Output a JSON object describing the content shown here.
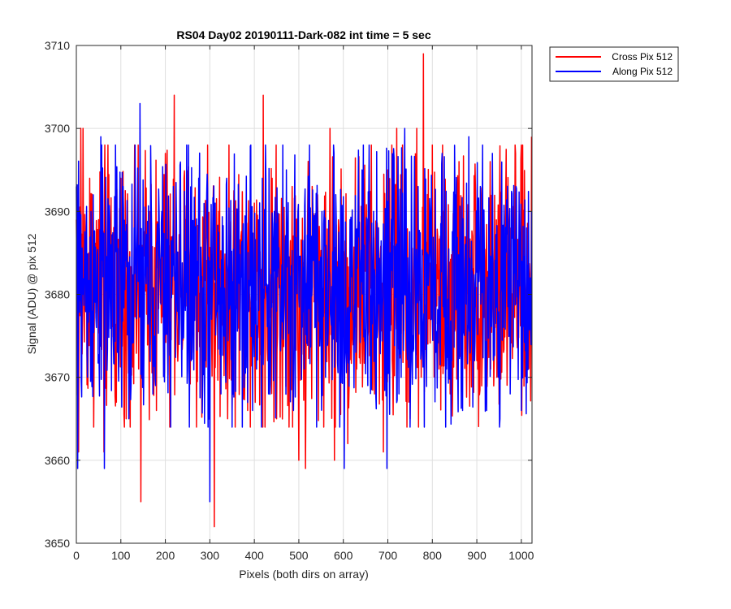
{
  "chart_data": {
    "type": "line",
    "title": "RS04 Day02 20190111-Dark-082 int time = 5 sec",
    "xlabel": "Pixels (both dirs on array)",
    "ylabel": "Signal (ADU) @ pix 512",
    "xlim": [
      0,
      1024
    ],
    "ylim": [
      3650,
      3710
    ],
    "x_ticks": [
      0,
      100,
      200,
      300,
      400,
      500,
      600,
      700,
      800,
      900,
      1000
    ],
    "y_ticks": [
      3650,
      3660,
      3670,
      3680,
      3690,
      3700,
      3710
    ],
    "grid": true,
    "legend_position": "outside top-right",
    "x_count": 1024,
    "series": [
      {
        "name": "Cross Pix 512",
        "color": "#ff0000",
        "sampled_x": [
          0,
          5,
          10,
          15,
          22,
          30,
          40,
          50,
          62,
          75,
          90,
          100,
          112,
          125,
          140,
          145,
          150,
          165,
          180,
          190,
          200,
          210,
          220,
          230,
          245,
          260,
          270,
          280,
          295,
          310,
          320,
          330,
          340,
          355,
          370,
          385,
          400,
          410,
          420,
          430,
          440,
          450,
          460,
          470,
          485,
          500,
          515,
          530,
          540,
          555,
          570,
          580,
          590,
          600,
          610,
          620,
          630,
          645,
          660,
          670,
          680,
          690,
          700,
          710,
          720,
          735,
          750,
          765,
          775,
          780,
          790,
          800,
          815,
          825,
          840,
          860,
          875,
          890,
          900,
          910,
          920,
          930,
          945,
          960,
          975,
          990,
          1000,
          1010,
          1023
        ],
        "values": [
          3689,
          3661,
          3700,
          3700,
          3683,
          3694,
          3673,
          3689,
          3661,
          3685,
          3667,
          3694,
          3665,
          3690,
          3671,
          3655,
          3684,
          3690,
          3666,
          3681,
          3697,
          3664,
          3704,
          3678,
          3689,
          3673,
          3664,
          3681,
          3698,
          3652,
          3690,
          3680,
          3665,
          3676,
          3687,
          3666,
          3691,
          3677,
          3704,
          3672,
          3694,
          3665,
          3686,
          3676,
          3693,
          3660,
          3659,
          3693,
          3672,
          3679,
          3700,
          3660,
          3688,
          3676,
          3662,
          3690,
          3671,
          3694,
          3676,
          3668,
          3682,
          3661,
          3695,
          3672,
          3700,
          3677,
          3665,
          3700,
          3670,
          3709,
          3674,
          3698,
          3671,
          3690,
          3668,
          3696,
          3676,
          3687,
          3672,
          3691,
          3668,
          3696,
          3670,
          3673,
          3688,
          3675,
          3698,
          3673,
          3699
        ]
      },
      {
        "name": "Along Pix 512",
        "color": "#0000ff",
        "sampled_x": [
          0,
          3,
          8,
          14,
          25,
          38,
          45,
          55,
          63,
          78,
          92,
          105,
          118,
          130,
          143,
          152,
          168,
          178,
          192,
          205,
          218,
          232,
          248,
          258,
          275,
          290,
          300,
          312,
          325,
          338,
          350,
          365,
          378,
          392,
          405,
          418,
          432,
          445,
          458,
          472,
          488,
          498,
          512,
          528,
          540,
          552,
          565,
          578,
          592,
          602,
          615,
          628,
          642,
          655,
          668,
          682,
          698,
          712,
          725,
          738,
          752,
          768,
          782,
          795,
          808,
          822,
          838,
          852,
          868,
          882,
          895,
          908,
          922,
          935,
          948,
          962,
          975,
          988,
          1000,
          1012,
          1023
        ],
        "values": [
          3693,
          3659,
          3690,
          3680,
          3670,
          3692,
          3676,
          3699,
          3659,
          3686,
          3673,
          3693,
          3665,
          3688,
          3703,
          3674,
          3692,
          3669,
          3690,
          3676,
          3693,
          3677,
          3698,
          3672,
          3694,
          3672,
          3655,
          3691,
          3668,
          3694,
          3664,
          3690,
          3672,
          3698,
          3671,
          3694,
          3668,
          3690,
          3674,
          3695,
          3666,
          3690,
          3671,
          3687,
          3664,
          3690,
          3674,
          3698,
          3664,
          3659,
          3689,
          3673,
          3695,
          3669,
          3690,
          3676,
          3659,
          3695,
          3668,
          3700,
          3672,
          3693,
          3664,
          3690,
          3673,
          3697,
          3670,
          3692,
          3666,
          3699,
          3672,
          3693,
          3666,
          3697,
          3670,
          3688,
          3668,
          3693,
          3666,
          3688,
          3690
        ]
      }
    ]
  }
}
